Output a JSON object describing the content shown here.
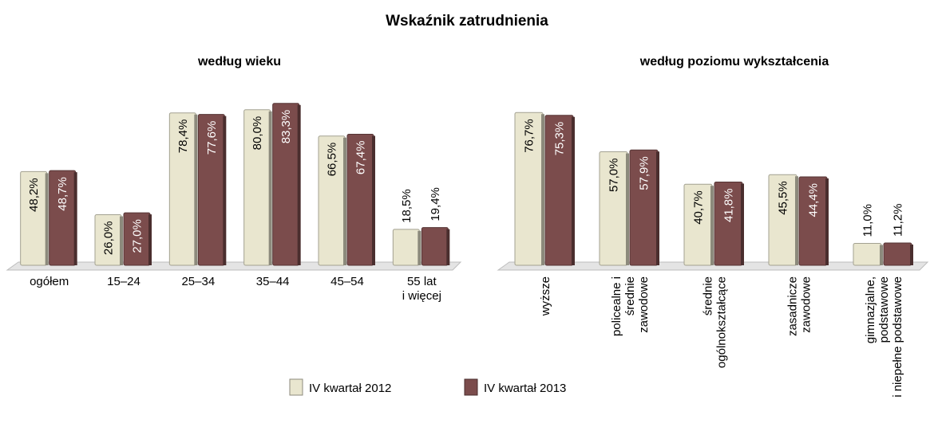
{
  "title": "Wskaźnik zatrudnienia",
  "legend": {
    "position": "bottom"
  },
  "chart_data": [
    {
      "type": "bar",
      "title": "według wieku",
      "categories": [
        [
          "ogółem"
        ],
        [
          "15–24"
        ],
        [
          "25–34"
        ],
        [
          "35–44"
        ],
        [
          "45–54"
        ],
        [
          "55 lat",
          "i więcej"
        ]
      ],
      "ylim": [
        0,
        100
      ],
      "series": [
        {
          "name": "IV kwartał 2012",
          "color": "#e9e6cf",
          "values": [
            48.2,
            26.0,
            78.4,
            80.0,
            66.5,
            18.5
          ],
          "value_labels": [
            "48,2%",
            "26,0%",
            "78,4%",
            "80,0%",
            "66,5%",
            "18,5%"
          ]
        },
        {
          "name": "IV kwartał 2013",
          "color": "#7b4c4c",
          "values": [
            48.7,
            27.0,
            77.6,
            83.3,
            67.4,
            19.4
          ],
          "value_labels": [
            "48,7%",
            "27,0%",
            "77,6%",
            "83,3%",
            "67,4%",
            "19,4%"
          ]
        }
      ]
    },
    {
      "type": "bar",
      "title": "według poziomu wykształcenia",
      "categories": [
        [
          "wyższe"
        ],
        [
          "policealne i",
          "średnie",
          "zawodowe"
        ],
        [
          "średnie",
          "ogólnokształcące"
        ],
        [
          "zasadnicze",
          "zawodowe"
        ],
        [
          "gimnazjalne,",
          "podstawowe",
          "i niepełne podstawowe"
        ]
      ],
      "ylim": [
        0,
        100
      ],
      "series": [
        {
          "color": "#e9e6cf",
          "values": [
            76.7,
            57.0,
            40.7,
            45.5,
            11.0
          ],
          "value_labels": [
            "76,7%",
            "57,0%",
            "40,7%",
            "45,5%",
            "11,0%"
          ]
        },
        {
          "color": "#7b4c4c",
          "values": [
            75.3,
            57.9,
            41.8,
            44.4,
            11.2
          ],
          "value_labels": [
            "75,3%",
            "57,9%",
            "41,8%",
            "44,4%",
            "11,2%"
          ]
        }
      ]
    }
  ]
}
